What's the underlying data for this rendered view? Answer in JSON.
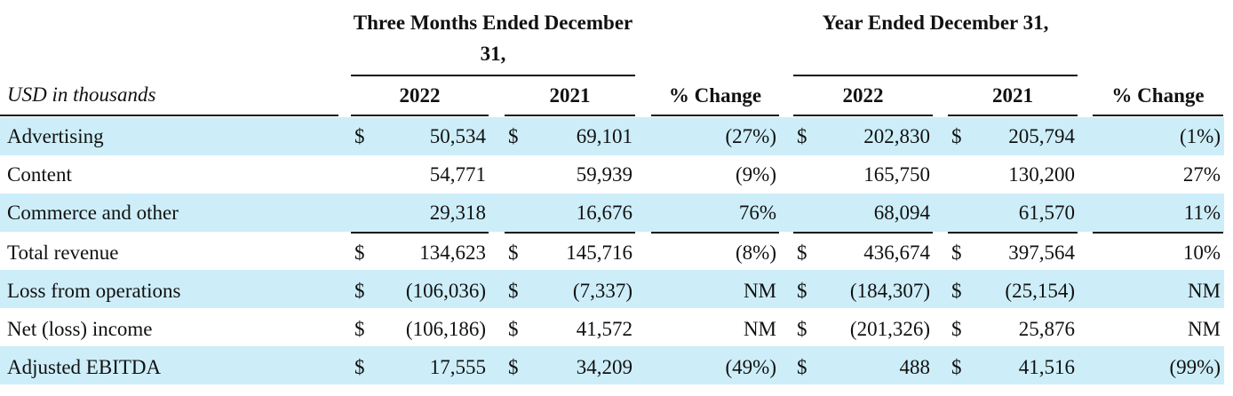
{
  "table": {
    "unit_label": "USD in thousands",
    "groups": [
      "Three Months Ended December 31,",
      "Year Ended December 31,"
    ],
    "columns": [
      "2022",
      "2021",
      "% Change",
      "2022",
      "2021",
      "% Change"
    ],
    "rows": [
      {
        "label": "Advertising",
        "cells": [
          {
            "cur": "$",
            "val": "50,534"
          },
          {
            "cur": "$",
            "val": "69,101"
          },
          {
            "val": "(27%)"
          },
          {
            "cur": "$",
            "val": "202,830"
          },
          {
            "cur": "$",
            "val": "205,794"
          },
          {
            "val": "(1%)"
          }
        ]
      },
      {
        "label": "Content",
        "cells": [
          {
            "val": "54,771"
          },
          {
            "val": "59,939"
          },
          {
            "val": "(9%)"
          },
          {
            "val": "165,750"
          },
          {
            "val": "130,200"
          },
          {
            "val": "27%"
          }
        ]
      },
      {
        "label": "Commerce and other",
        "cells": [
          {
            "val": "29,318"
          },
          {
            "val": "16,676"
          },
          {
            "val": "76%"
          },
          {
            "val": "68,094"
          },
          {
            "val": "61,570"
          },
          {
            "val": "11%"
          }
        ]
      },
      {
        "label": "Total revenue",
        "cells": [
          {
            "cur": "$",
            "val": "134,623"
          },
          {
            "cur": "$",
            "val": "145,716"
          },
          {
            "val": "(8%)"
          },
          {
            "cur": "$",
            "val": "436,674"
          },
          {
            "cur": "$",
            "val": "397,564"
          },
          {
            "val": "10%"
          }
        ]
      },
      {
        "label": "Loss from operations",
        "cells": [
          {
            "cur": "$",
            "val": "(106,036)"
          },
          {
            "cur": "$",
            "val": "(7,337)"
          },
          {
            "val": "NM"
          },
          {
            "cur": "$",
            "val": "(184,307)"
          },
          {
            "cur": "$",
            "val": "(25,154)"
          },
          {
            "val": "NM"
          }
        ]
      },
      {
        "label": "Net (loss) income",
        "cells": [
          {
            "cur": "$",
            "val": "(106,186)"
          },
          {
            "cur": "$",
            "val": "41,572"
          },
          {
            "val": "NM"
          },
          {
            "cur": "$",
            "val": "(201,326)"
          },
          {
            "cur": "$",
            "val": "25,876"
          },
          {
            "val": "NM"
          }
        ]
      },
      {
        "label": "Adjusted EBITDA",
        "cells": [
          {
            "cur": "$",
            "val": "17,555"
          },
          {
            "cur": "$",
            "val": "34,209"
          },
          {
            "val": "(49%)"
          },
          {
            "cur": "$",
            "val": "488"
          },
          {
            "cur": "$",
            "val": "41,516"
          },
          {
            "val": "(99%)"
          }
        ]
      }
    ]
  }
}
